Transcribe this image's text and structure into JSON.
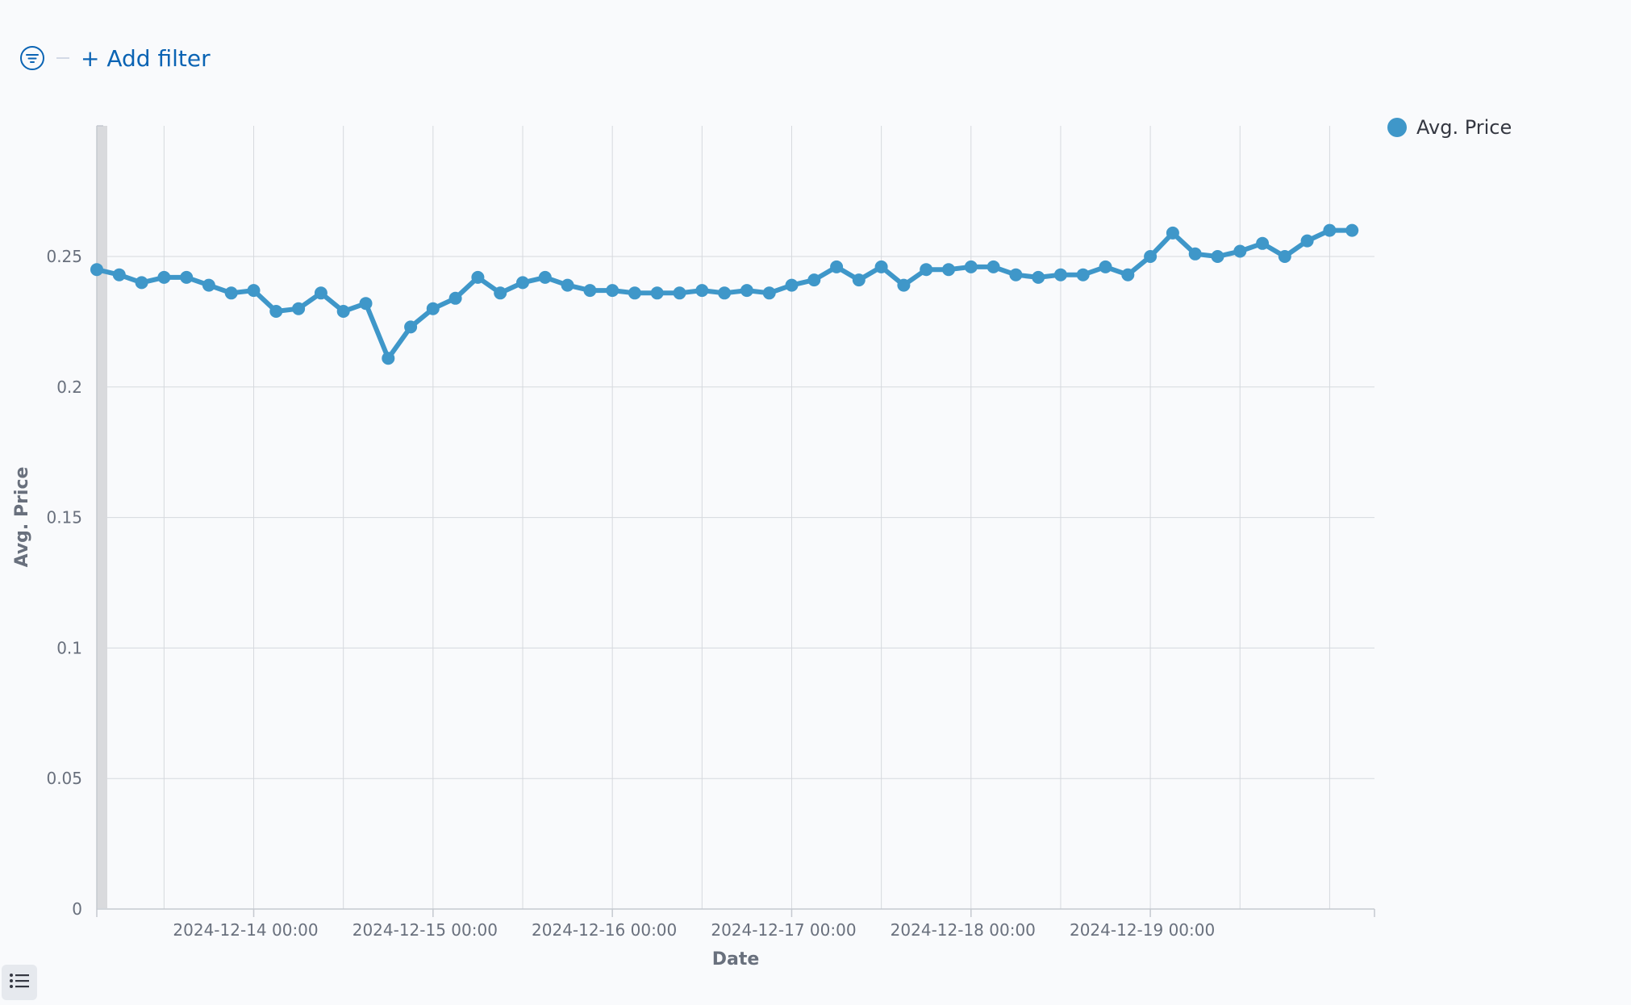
{
  "filter_bar": {
    "add_filter_label": "+ Add filter",
    "filter_icon": "filter-icon"
  },
  "legend": {
    "items": [
      {
        "label": "Avg. Price",
        "color": "#3f97c9"
      }
    ]
  },
  "toggle": {
    "icon": "list-icon"
  },
  "colors": {
    "series": "#3f97c9",
    "grid": "#d6d9de",
    "axis": "#c5c9d0",
    "tick_text": "#69707d",
    "link": "#0b64b4"
  },
  "chart_data": {
    "type": "line",
    "title": "",
    "xlabel": "Date",
    "ylabel": "Avg. Price",
    "ylim": [
      0,
      0.3
    ],
    "y_ticks": [
      0,
      0.05,
      0.1,
      0.15,
      0.2,
      0.25
    ],
    "y_tick_labels": [
      "0",
      "0.05",
      "0.1",
      "0.15",
      "0.2",
      "0.25"
    ],
    "x_range": [
      "2024-12-13 03:00",
      "2024-12-20 06:00"
    ],
    "x_ticks": [
      "2024-12-14 00:00",
      "2024-12-15 00:00",
      "2024-12-16 00:00",
      "2024-12-17 00:00",
      "2024-12-18 00:00",
      "2024-12-19 00:00"
    ],
    "x_tick_labels": [
      "2024-12-14 00:00",
      "2024-12-15 00:00",
      "2024-12-16 00:00",
      "2024-12-17 00:00",
      "2024-12-18 00:00",
      "2024-12-19 00:00"
    ],
    "x_minor_ticks": [
      "2024-12-13 12:00",
      "2024-12-14 12:00",
      "2024-12-15 12:00",
      "2024-12-16 12:00",
      "2024-12-17 12:00",
      "2024-12-18 12:00",
      "2024-12-19 12:00",
      "2024-12-20 00:00"
    ],
    "grid": true,
    "legend_position": "top-right",
    "series": [
      {
        "name": "Avg. Price",
        "x": [
          "2024-12-13 03:00",
          "2024-12-13 06:00",
          "2024-12-13 09:00",
          "2024-12-13 12:00",
          "2024-12-13 15:00",
          "2024-12-13 18:00",
          "2024-12-13 21:00",
          "2024-12-14 00:00",
          "2024-12-14 03:00",
          "2024-12-14 06:00",
          "2024-12-14 09:00",
          "2024-12-14 12:00",
          "2024-12-14 15:00",
          "2024-12-14 18:00",
          "2024-12-14 21:00",
          "2024-12-15 00:00",
          "2024-12-15 03:00",
          "2024-12-15 06:00",
          "2024-12-15 09:00",
          "2024-12-15 12:00",
          "2024-12-15 15:00",
          "2024-12-15 18:00",
          "2024-12-15 21:00",
          "2024-12-16 00:00",
          "2024-12-16 03:00",
          "2024-12-16 06:00",
          "2024-12-16 09:00",
          "2024-12-16 12:00",
          "2024-12-16 15:00",
          "2024-12-16 18:00",
          "2024-12-16 21:00",
          "2024-12-17 00:00",
          "2024-12-17 03:00",
          "2024-12-17 06:00",
          "2024-12-17 09:00",
          "2024-12-17 12:00",
          "2024-12-17 15:00",
          "2024-12-17 18:00",
          "2024-12-17 21:00",
          "2024-12-18 00:00",
          "2024-12-18 03:00",
          "2024-12-18 06:00",
          "2024-12-18 09:00",
          "2024-12-18 12:00",
          "2024-12-18 15:00",
          "2024-12-18 18:00",
          "2024-12-18 21:00",
          "2024-12-19 00:00",
          "2024-12-19 03:00",
          "2024-12-19 06:00",
          "2024-12-19 09:00",
          "2024-12-19 12:00",
          "2024-12-19 15:00",
          "2024-12-19 18:00",
          "2024-12-19 21:00",
          "2024-12-20 00:00",
          "2024-12-20 03:00"
        ],
        "values": [
          0.245,
          0.243,
          0.24,
          0.242,
          0.242,
          0.239,
          0.236,
          0.237,
          0.229,
          0.23,
          0.236,
          0.229,
          0.232,
          0.211,
          0.223,
          0.23,
          0.234,
          0.242,
          0.236,
          0.24,
          0.242,
          0.239,
          0.237,
          0.237,
          0.236,
          0.236,
          0.236,
          0.237,
          0.236,
          0.237,
          0.236,
          0.239,
          0.241,
          0.246,
          0.241,
          0.246,
          0.239,
          0.245,
          0.245,
          0.246,
          0.246,
          0.243,
          0.242,
          0.243,
          0.243,
          0.246,
          0.243,
          0.25,
          0.259,
          0.251,
          0.25,
          0.252,
          0.255,
          0.25,
          0.256,
          0.26,
          0.26
        ]
      }
    ]
  }
}
